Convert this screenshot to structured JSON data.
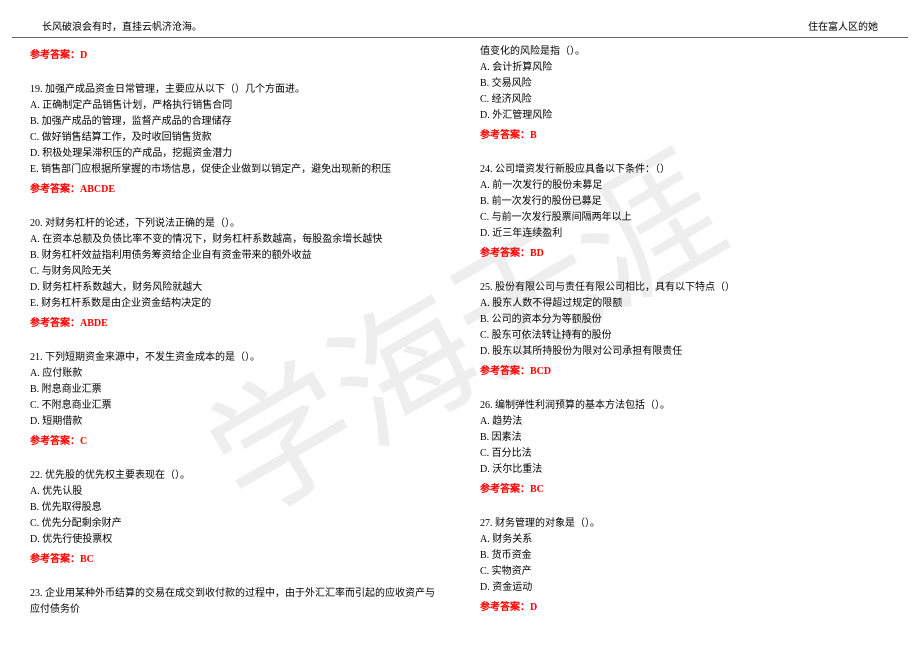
{
  "header": {
    "left": "长风破浪会有时，直挂云帆济沧海。",
    "right": "住在富人区的她"
  },
  "watermark": "学海无涯",
  "col1": {
    "q18": {
      "answer": "参考答案：D"
    },
    "q19": {
      "text": "19. 加强产成品资金日常管理，主要应从以下（）几个方面进。",
      "a": "A. 正确制定产品销售计划，严格执行销售合同",
      "b": "B. 加强产成品的管理，监督产成品的合理储存",
      "c": "C. 做好销售结算工作，及时收回销售货款",
      "d": "D. 积极处理呆滞积压的产成品，挖掘资金潜力",
      "e": "E. 销售部门应根据所掌握的市场信息，促使企业做到以销定产，避免出现新的积压",
      "answer": "参考答案：ABCDE"
    },
    "q20": {
      "text": "20. 对财务杠杆的论述，下列说法正确的是（）。",
      "a": "A. 在资本总额及负债比率不变的情况下，财务杠杆系数越高，每股盈余增长越快",
      "b": "B. 财务杠杆效益指利用债务筹资给企业自有资金带来的额外收益",
      "c": "C. 与财务风险无关",
      "d": "D. 财务杠杆系数越大，财务风险就越大",
      "e": "E. 财务杠杆系数是由企业资金结构决定的",
      "answer": "参考答案：ABDE"
    },
    "q21": {
      "text": "21. 下列短期资金来源中，不发生资金成本的是（）。",
      "a": "A. 应付账款",
      "b": "B. 附息商业汇票",
      "c": "C. 不附息商业汇票",
      "d": "D. 短期借款",
      "answer": "参考答案：C"
    },
    "q22": {
      "text": "22. 优先股的优先权主要表现在（）。",
      "a": "A. 优先认股",
      "b": "B. 优先取得股息",
      "c": "C. 优先分配剩余财产",
      "d": "D. 优先行使投票权",
      "answer": "参考答案：BC"
    },
    "q23": {
      "text": "23. 企业用某种外币结算的交易在成交到收付款的过程中，由于外汇汇率而引起的应收资产与应付债务价"
    }
  },
  "col2": {
    "q23cont": {
      "text": "值变化的风险是指（）。",
      "a": "A. 会计折算风险",
      "b": "B. 交易风险",
      "c": "C. 经济风险",
      "d": "D. 外汇管理风险",
      "answer": "参考答案：B"
    },
    "q24": {
      "text": "24. 公司增资发行新股应具备以下条件：（）",
      "a": "A. 前一次发行的股份未募足",
      "b": "B. 前一次发行的股份已募足",
      "c": "C. 与前一次发行股票间隔两年以上",
      "d": "D. 近三年连续盈利",
      "answer": "参考答案：BD"
    },
    "q25": {
      "text": "25. 股份有限公司与责任有限公司相比，具有以下特点（）",
      "a": "A. 股东人数不得超过规定的限额",
      "b": "B. 公司的资本分为等额股份",
      "c": "C. 股东可依法转让持有的股份",
      "d": "D. 股东以其所持股份为限对公司承担有限责任",
      "answer": "参考答案：BCD"
    },
    "q26": {
      "text": "26. 编制弹性利润预算的基本方法包括（）。",
      "a": "A. 趋势法",
      "b": "B. 因素法",
      "c": "C. 百分比法",
      "d": "D. 沃尔比重法",
      "answer": "参考答案：BC"
    },
    "q27": {
      "text": "27. 财务管理的对象是（）。",
      "a": "A. 财务关系",
      "b": "B. 货币资金",
      "c": "C. 实物资产",
      "d": "D. 资金运动",
      "answer": "参考答案：D"
    }
  }
}
